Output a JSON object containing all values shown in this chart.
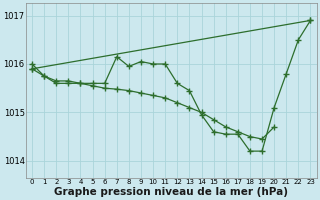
{
  "xlabel": "Graphe pression niveau de la mer (hPa)",
  "bg_color": "#cce8ee",
  "grid_color_v": "#aad4da",
  "grid_color_h": "#aad4da",
  "line_color": "#2d6e2d",
  "ylim_min": 1013.65,
  "ylim_max": 1017.25,
  "yticks": [
    1014,
    1015,
    1016,
    1017
  ],
  "xticks": [
    0,
    1,
    2,
    3,
    4,
    5,
    6,
    7,
    8,
    9,
    10,
    11,
    12,
    13,
    14,
    15,
    16,
    17,
    18,
    19,
    20,
    21,
    22,
    23
  ],
  "series1_x": [
    0,
    1,
    2,
    3,
    4,
    5,
    6,
    7,
    8,
    9,
    10,
    11,
    12,
    13,
    14,
    15,
    16,
    17,
    18,
    19,
    20,
    21,
    22,
    23
  ],
  "series1_y": [
    1016.0,
    1015.75,
    1015.6,
    1015.6,
    1015.6,
    1015.6,
    1015.6,
    1016.15,
    1015.95,
    1016.05,
    1016.0,
    1016.0,
    1015.6,
    1015.45,
    1014.95,
    1014.6,
    1014.55,
    1014.55,
    1014.2,
    1014.2,
    1015.1,
    1015.8,
    1016.5,
    1016.9
  ],
  "series2_x": [
    0,
    1,
    2,
    3,
    4,
    5,
    6,
    7,
    8,
    9,
    10,
    11,
    12,
    13,
    14,
    15,
    16,
    17,
    18,
    19,
    20
  ],
  "series2_y": [
    1015.9,
    1015.75,
    1015.65,
    1015.65,
    1015.6,
    1015.55,
    1015.5,
    1015.48,
    1015.45,
    1015.4,
    1015.35,
    1015.3,
    1015.2,
    1015.1,
    1015.0,
    1014.85,
    1014.7,
    1014.6,
    1014.5,
    1014.45,
    1014.7
  ],
  "series3_x": [
    0,
    23
  ],
  "series3_y": [
    1015.9,
    1016.9
  ],
  "xlabel_fontsize": 7.5,
  "marker": "+",
  "markersize": 4,
  "lw": 0.9
}
